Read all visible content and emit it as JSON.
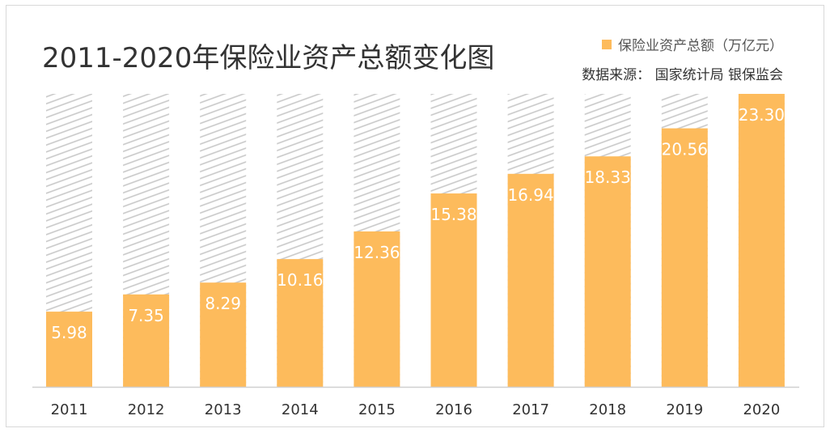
{
  "chart_data": {
    "type": "bar",
    "title": "2011-2020年保险业资产总额变化图",
    "legend": {
      "label": "保险业资产总额（万亿元）",
      "placement": "top-right"
    },
    "source": "数据来源： 国家统计局 银保监会",
    "categories": [
      "2011",
      "2012",
      "2013",
      "2014",
      "2015",
      "2016",
      "2017",
      "2018",
      "2019",
      "2020"
    ],
    "series": [
      {
        "name": "保险业资产总额（万亿元）",
        "values": [
          5.98,
          7.35,
          8.29,
          10.16,
          12.36,
          15.38,
          16.94,
          18.33,
          20.56,
          23.3
        ]
      }
    ],
    "value_labels": [
      "5.98",
      "7.35",
      "8.29",
      "10.16",
      "12.36",
      "15.38",
      "16.94",
      "18.33",
      "20.56",
      "23.30"
    ],
    "background_bars": "hatched, to maximum value",
    "ylim": [
      0,
      23.3
    ],
    "grid": false,
    "colors": {
      "bar": "#FDBB5C",
      "hatch": "#c8c8c8",
      "label": "#ffffff",
      "axis": "#d0d0d0"
    }
  }
}
